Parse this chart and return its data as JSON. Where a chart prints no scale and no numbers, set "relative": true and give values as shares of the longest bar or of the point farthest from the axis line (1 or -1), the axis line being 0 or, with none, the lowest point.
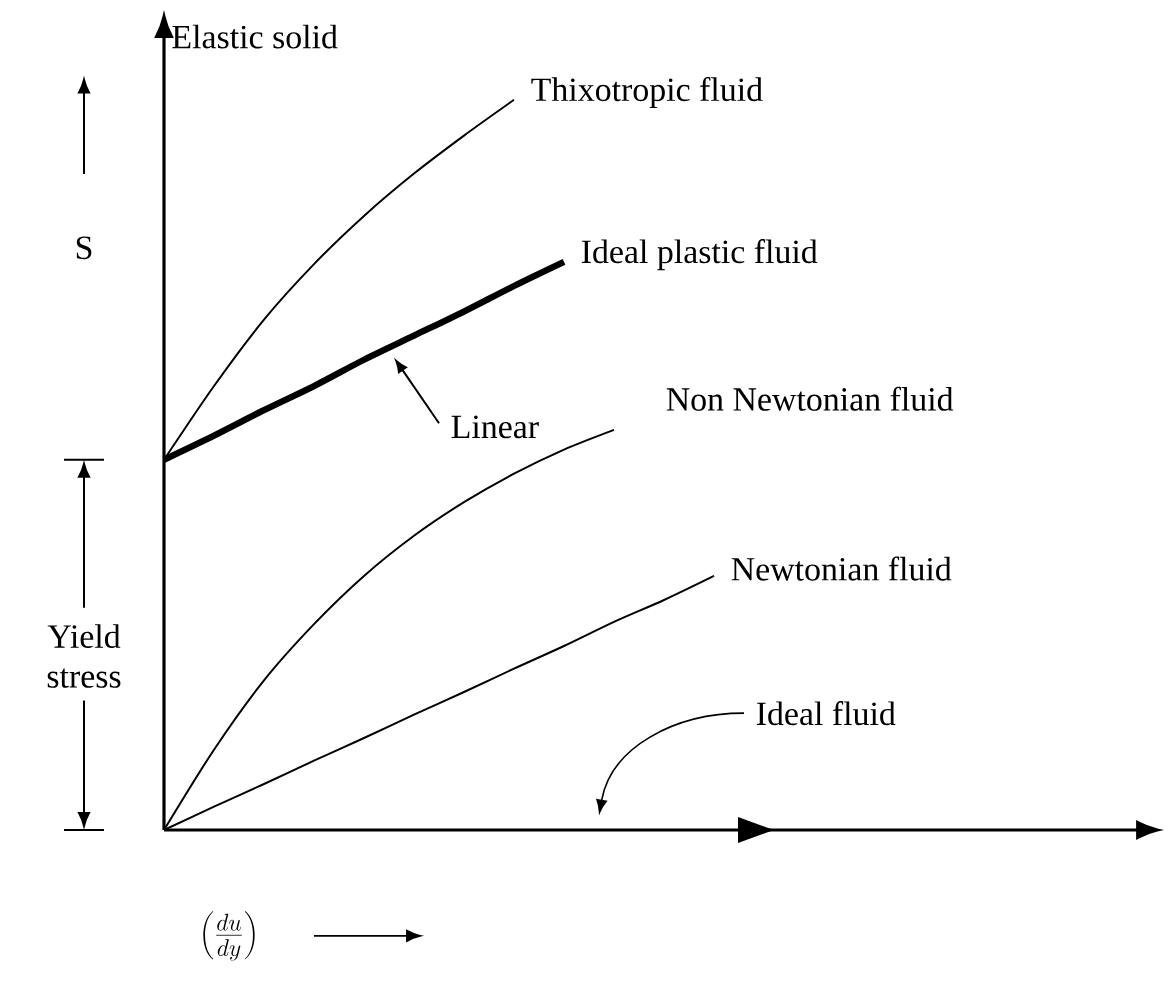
{
  "chart_data": {
    "type": "line",
    "relative": true,
    "marker": "none",
    "line_style": "solid",
    "ylabel": "S",
    "xlabel": "\\left(\\frac{du}{dy}\\right)",
    "annotations": [
      "Elastic solid",
      "Linear",
      "Yield stress"
    ],
    "categories": [
      null,
      null,
      null,
      null,
      null,
      null,
      null,
      null,
      null,
      null,
      null,
      null,
      null,
      null,
      null,
      null,
      null,
      null,
      null,
      null,
      null
    ],
    "series": [
      {
        "name": "Thixotropic fluid",
        "color": "#000000",
        "values": [
          0.507,
          0.608,
          0.699,
          0.775,
          0.841,
          0.899,
          0.951,
          1.0,
          null,
          null,
          null,
          null,
          null,
          null,
          null,
          null,
          null,
          null,
          null,
          null,
          null
        ]
      },
      {
        "name": "Ideal plastic fluid",
        "color": "#000000",
        "values": [
          0.507,
          0.54,
          0.575,
          0.608,
          0.644,
          0.677,
          0.71,
          0.745,
          0.778,
          null,
          null,
          null,
          null,
          null,
          null,
          null,
          null,
          null,
          null,
          null,
          null
        ]
      },
      {
        "name": "Non Newtonian fluid",
        "color": "#000000",
        "values": [
          0,
          0.11,
          0.205,
          0.282,
          0.348,
          0.403,
          0.449,
          0.488,
          0.521,
          0.548,
          null,
          null,
          null,
          null,
          null,
          null,
          null,
          null,
          null,
          null,
          null
        ]
      },
      {
        "name": "Newtonian fluid",
        "color": "#000000",
        "values": [
          0,
          0.032,
          0.063,
          0.095,
          0.126,
          0.158,
          0.189,
          0.221,
          0.252,
          0.285,
          0.315,
          0.348,
          null,
          null,
          null,
          null,
          null,
          null,
          null,
          null,
          null
        ]
      },
      {
        "name": "Ideal fluid",
        "color": "#000000",
        "values": [
          0,
          0,
          0,
          0,
          0,
          0,
          0,
          0,
          0,
          0,
          0,
          0,
          null,
          null,
          null,
          null,
          null,
          null,
          null,
          null,
          null
        ]
      }
    ]
  }
}
